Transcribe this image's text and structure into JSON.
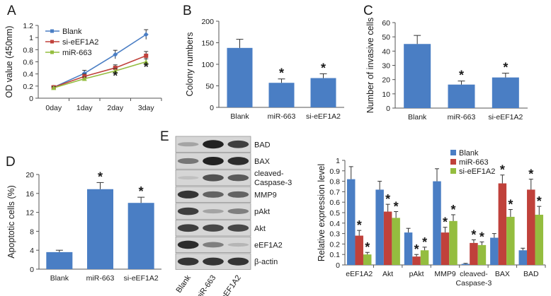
{
  "colors": {
    "blank": "#4a7ec4",
    "si_eEF1A2": "#c0413b",
    "miR_663": "#94bd3f",
    "bar_single": "#4a7ec4",
    "axis": "#555555"
  },
  "significance_marker": "*",
  "chart_data": [
    {
      "panel": "A",
      "type": "line",
      "ylabel": "OD value (450nm)",
      "xlabel": "",
      "categories": [
        "0day",
        "1day",
        "2day",
        "3day"
      ],
      "ylim": [
        0,
        1.2
      ],
      "yticks": [
        "0",
        "0.2",
        "0.4",
        "0.6",
        "0.8",
        "1",
        "1.2"
      ],
      "legend_position": "top-left",
      "series": [
        {
          "name": "Blank",
          "key": "blank",
          "values": [
            0.18,
            0.41,
            0.72,
            1.05
          ],
          "errors": [
            0.02,
            0.05,
            0.07,
            0.08
          ],
          "marker": "diamond"
        },
        {
          "name": "si-eEF1A2",
          "key": "si_eEF1A2",
          "values": [
            0.18,
            0.36,
            0.5,
            0.7
          ],
          "errors": [
            0.02,
            0.04,
            0.05,
            0.07
          ],
          "marker": "square"
        },
        {
          "name": "miR-663",
          "key": "miR_663",
          "values": [
            0.17,
            0.32,
            0.45,
            0.6
          ],
          "errors": [
            0.02,
            0.03,
            0.04,
            0.05
          ],
          "marker": "triangle"
        }
      ],
      "stars": [
        {
          "category": "2day",
          "y": 0.3
        },
        {
          "category": "3day",
          "y": 0.44
        }
      ]
    },
    {
      "panel": "B",
      "type": "bar",
      "ylabel": "Colony numbers",
      "categories": [
        "Blank",
        "miR-663",
        "si-eEF1A2"
      ],
      "values": [
        138,
        57,
        68
      ],
      "errors": [
        20,
        9,
        10
      ],
      "ylim": [
        0,
        200
      ],
      "yticks": [
        "0",
        "50",
        "100",
        "150",
        "200"
      ],
      "significant": [
        false,
        true,
        true
      ]
    },
    {
      "panel": "C",
      "type": "bar",
      "ylabel": "Number of invasive cells",
      "categories": [
        "Blank",
        "miR-663",
        "si-eEF1A2"
      ],
      "values": [
        45,
        16.5,
        21.5
      ],
      "errors": [
        6,
        2.5,
        3
      ],
      "ylim": [
        0,
        60
      ],
      "yticks": [
        "0",
        "10",
        "20",
        "30",
        "40",
        "50",
        "60"
      ],
      "significant": [
        false,
        true,
        true
      ]
    },
    {
      "panel": "D",
      "type": "bar",
      "ylabel": "Apoptotic cells (%)",
      "categories": [
        "Blank",
        "miR-663",
        "si-eEF1A2"
      ],
      "values": [
        3.6,
        16.9,
        14
      ],
      "errors": [
        0.4,
        1.4,
        1.2
      ],
      "ylim": [
        0,
        20
      ],
      "yticks": [
        "0",
        "4",
        "8",
        "12",
        "16",
        "20"
      ],
      "significant": [
        false,
        true,
        true
      ]
    },
    {
      "panel": "E",
      "type": "bar",
      "ylabel": "Relative expression level",
      "categories": [
        "eEF1A2",
        "Akt",
        "pAkt",
        "MMP9",
        "cleaved-Caspase-3",
        "BAX",
        "BAD"
      ],
      "category_lines": [
        [
          "eEF1A2"
        ],
        [
          "Akt"
        ],
        [
          "pAkt"
        ],
        [
          "MMP9"
        ],
        [
          "cleaved-",
          "Caspase-3"
        ],
        [
          "BAX"
        ],
        [
          "BAD"
        ]
      ],
      "ylim": [
        0,
        1
      ],
      "yticks": [
        "0",
        "0.1",
        "0.2",
        "0.3",
        "0.4",
        "0.5",
        "0.6",
        "0.7",
        "0.8",
        "0.9",
        "1"
      ],
      "legend_position": "top-left",
      "series": [
        {
          "name": "Blank",
          "key": "blank",
          "values": [
            0.82,
            0.72,
            0.31,
            0.8,
            0.01,
            0.26,
            0.14
          ],
          "errors": [
            0.12,
            0.08,
            0.04,
            0.12,
            0.005,
            0.04,
            0.02
          ],
          "significant": [
            false,
            false,
            false,
            false,
            false,
            false,
            false
          ]
        },
        {
          "name": "miR-663",
          "key": "si_eEF1A2",
          "values": [
            0.28,
            0.51,
            0.08,
            0.31,
            0.21,
            0.78,
            0.72
          ],
          "errors": [
            0.05,
            0.07,
            0.02,
            0.05,
            0.03,
            0.08,
            0.1
          ],
          "significant": [
            true,
            true,
            true,
            true,
            true,
            true,
            true
          ]
        },
        {
          "name": "si-eEF1A2",
          "key": "miR_663",
          "values": [
            0.1,
            0.45,
            0.14,
            0.42,
            0.19,
            0.46,
            0.48
          ],
          "errors": [
            0.02,
            0.06,
            0.03,
            0.06,
            0.03,
            0.07,
            0.08
          ],
          "significant": [
            true,
            true,
            true,
            true,
            true,
            true,
            true
          ]
        }
      ]
    }
  ],
  "western_blot": {
    "panel": "E",
    "bands": [
      "BAD",
      "BAX",
      "cleaved-Caspase-3",
      "MMP9",
      "pAkt",
      "Akt",
      "eEF1A2",
      "β-actin"
    ],
    "band_lines": [
      [
        "BAD"
      ],
      [
        "BAX"
      ],
      [
        "cleaved-",
        "Caspase-3"
      ],
      [
        "MMP9"
      ],
      [
        "pAkt"
      ],
      [
        "Akt"
      ],
      [
        "eEF1A2"
      ],
      [
        "β-actin"
      ]
    ],
    "lanes": [
      "Blank",
      "miR-663",
      "si-eEF1A2"
    ],
    "intensity": [
      [
        0.25,
        0.95,
        0.8
      ],
      [
        0.5,
        0.95,
        0.9
      ],
      [
        0.1,
        0.7,
        0.65
      ],
      [
        0.85,
        0.6,
        0.6
      ],
      [
        0.8,
        0.25,
        0.45
      ],
      [
        0.8,
        0.75,
        0.75
      ],
      [
        0.9,
        0.45,
        0.15
      ],
      [
        0.85,
        0.85,
        0.85
      ]
    ]
  }
}
